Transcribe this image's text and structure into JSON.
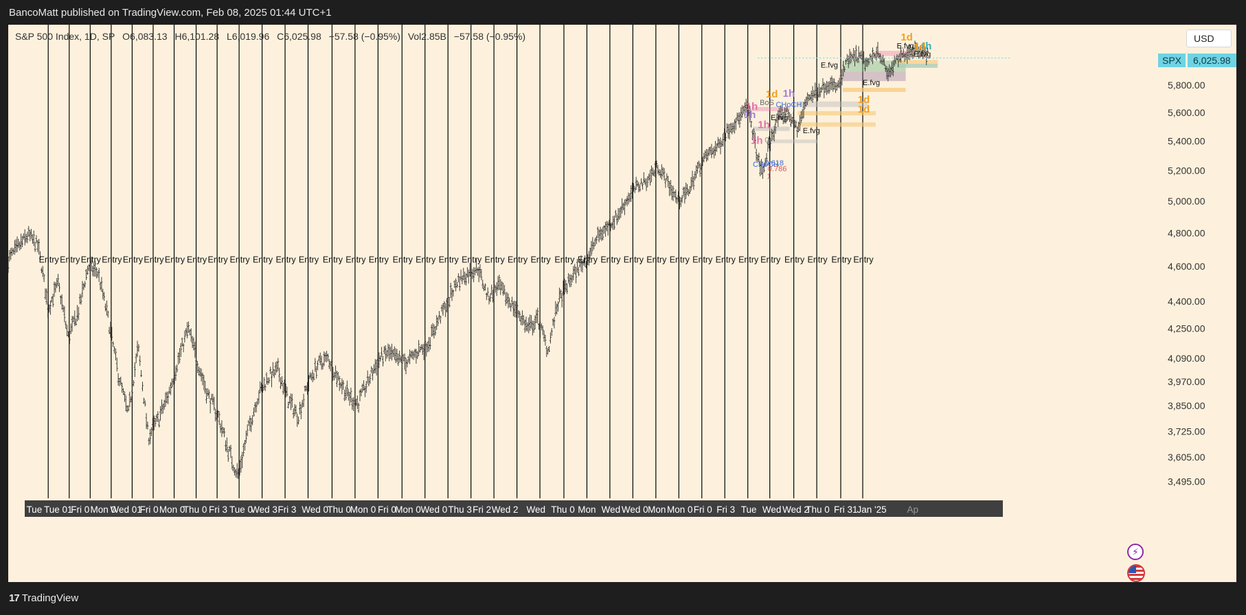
{
  "header": {
    "published": "BancoMatt published on TradingView.com, Feb 08, 2025 01:44 UTC+1"
  },
  "ohlc": {
    "symbol": "S&P 500 Index, 1D, SP",
    "open": "O6,083.13",
    "high": "H6,101.28",
    "low": "L6,019.96",
    "close": "C6,025.98",
    "change": "−57.58 (−0.95%)",
    "volume": "Vol2.85B",
    "change2": "−57.58 (−0.95%)"
  },
  "currency_button": "USD",
  "price_tag": {
    "symbol": "SPX",
    "value": "6,025.98"
  },
  "footer": {
    "logo": "TradingView",
    "logo_mark": "17"
  },
  "icons": {
    "flash": "lightning-icon",
    "flag": "us-flag-icon"
  },
  "colors": {
    "background": "#fdf1dd",
    "candles": "#2b2b2b",
    "entry_lines": "#000000",
    "price_tag": "#6fd3e3",
    "orange_label": "#f0a020",
    "purple_label": "#a57fd6",
    "pink_label": "#e36fa6",
    "teal_label": "#2bb3c0"
  },
  "chart_data": {
    "type": "candlestick",
    "title": "S&P 500 Index, 1D, SP",
    "ylim": [
      3420,
      6200
    ],
    "y_ticks": [
      "6,025.98",
      "5,800.00",
      "5,600.00",
      "5,400.00",
      "5,200.00",
      "5,000.00",
      "4,800.00",
      "4,600.00",
      "4,400.00",
      "4,250.00",
      "4,090.00",
      "3,970.00",
      "3,850.00",
      "3,725.00",
      "3,605.00",
      "3,495.00"
    ],
    "y_tick_values": [
      6025.98,
      5800,
      5600,
      5400,
      5200,
      5000,
      4800,
      4600,
      4400,
      4250,
      4090,
      3970,
      3850,
      3725,
      3605,
      3495
    ],
    "x_ticks": [
      "Tue",
      "Tue 01",
      "Fri 0",
      "Mon 0",
      "Wed 01",
      "Fri 0",
      "Mon 0",
      "Thu 0",
      "Fri 3",
      "Tue 0",
      "Wed 3",
      "Fri 3",
      "Wed 0",
      "Thu 0",
      "Mon 0",
      "Fri 0",
      "Mon 0",
      "Wed 0",
      "Thu 3",
      "Fri 2",
      "Wed 2",
      "Wed",
      "Thu 0",
      "Mon",
      "Wed",
      "Wed 0",
      "Mon",
      "Mon 0",
      "Fri 0",
      "Fri 3",
      "Tue",
      "Wed",
      "Wed 2",
      "Thu 0",
      "Fri 31",
      "Jan '25",
      "Ap"
    ],
    "x_tick_positions": [
      0.026,
      0.05,
      0.072,
      0.095,
      0.118,
      0.141,
      0.164,
      0.187,
      0.21,
      0.233,
      0.256,
      0.279,
      0.307,
      0.331,
      0.355,
      0.379,
      0.4,
      0.426,
      0.452,
      0.474,
      0.497,
      0.528,
      0.555,
      0.579,
      0.603,
      0.627,
      0.649,
      0.672,
      0.695,
      0.718,
      0.741,
      0.764,
      0.788,
      0.81,
      0.838,
      0.864,
      0.905
    ],
    "entry_label": "Entry",
    "entry_positions": [
      0.04,
      0.061,
      0.082,
      0.103,
      0.124,
      0.145,
      0.166,
      0.188,
      0.209,
      0.231,
      0.254,
      0.277,
      0.3,
      0.324,
      0.347,
      0.37,
      0.394,
      0.417,
      0.44,
      0.463,
      0.486,
      0.509,
      0.532,
      0.556,
      0.579,
      0.602,
      0.625,
      0.648,
      0.671,
      0.694,
      0.717,
      0.74,
      0.762,
      0.786,
      0.809,
      0.833,
      0.855
    ],
    "series_shape": [
      [
        0,
        4640
      ],
      [
        0.02,
        4790
      ],
      [
        0.03,
        4720
      ],
      [
        0.04,
        4360
      ],
      [
        0.05,
        4500
      ],
      [
        0.06,
        4200
      ],
      [
        0.07,
        4340
      ],
      [
        0.08,
        4600
      ],
      [
        0.09,
        4560
      ],
      [
        0.1,
        4300
      ],
      [
        0.11,
        4010
      ],
      [
        0.12,
        3800
      ],
      [
        0.13,
        4150
      ],
      [
        0.14,
        3700
      ],
      [
        0.15,
        3780
      ],
      [
        0.16,
        3900
      ],
      [
        0.17,
        4080
      ],
      [
        0.18,
        4250
      ],
      [
        0.19,
        4060
      ],
      [
        0.2,
        3900
      ],
      [
        0.21,
        3800
      ],
      [
        0.22,
        3640
      ],
      [
        0.23,
        3520
      ],
      [
        0.24,
        3730
      ],
      [
        0.25,
        3900
      ],
      [
        0.26,
        3990
      ],
      [
        0.27,
        4030
      ],
      [
        0.28,
        3880
      ],
      [
        0.29,
        3800
      ],
      [
        0.3,
        3960
      ],
      [
        0.31,
        4060
      ],
      [
        0.32,
        4090
      ],
      [
        0.33,
        3990
      ],
      [
        0.34,
        3900
      ],
      [
        0.35,
        3860
      ],
      [
        0.36,
        3970
      ],
      [
        0.37,
        4080
      ],
      [
        0.38,
        4120
      ],
      [
        0.39,
        4080
      ],
      [
        0.4,
        4070
      ],
      [
        0.41,
        4130
      ],
      [
        0.42,
        4170
      ],
      [
        0.43,
        4290
      ],
      [
        0.44,
        4400
      ],
      [
        0.45,
        4520
      ],
      [
        0.46,
        4560
      ],
      [
        0.47,
        4590
      ],
      [
        0.48,
        4420
      ],
      [
        0.49,
        4490
      ],
      [
        0.5,
        4410
      ],
      [
        0.51,
        4340
      ],
      [
        0.52,
        4250
      ],
      [
        0.53,
        4300
      ],
      [
        0.54,
        4130
      ],
      [
        0.55,
        4390
      ],
      [
        0.56,
        4500
      ],
      [
        0.57,
        4590
      ],
      [
        0.58,
        4650
      ],
      [
        0.59,
        4780
      ],
      [
        0.6,
        4840
      ],
      [
        0.61,
        4910
      ],
      [
        0.62,
        5020
      ],
      [
        0.63,
        5100
      ],
      [
        0.64,
        5140
      ],
      [
        0.65,
        5230
      ],
      [
        0.66,
        5120
      ],
      [
        0.67,
        5000
      ],
      [
        0.68,
        5060
      ],
      [
        0.69,
        5210
      ],
      [
        0.7,
        5310
      ],
      [
        0.71,
        5360
      ],
      [
        0.72,
        5480
      ],
      [
        0.73,
        5550
      ],
      [
        0.74,
        5640
      ],
      [
        0.75,
        5280
      ],
      [
        0.755,
        5180
      ],
      [
        0.76,
        5340
      ],
      [
        0.77,
        5560
      ],
      [
        0.78,
        5600
      ],
      [
        0.79,
        5480
      ],
      [
        0.8,
        5710
      ],
      [
        0.81,
        5760
      ],
      [
        0.82,
        5810
      ],
      [
        0.83,
        5780
      ],
      [
        0.84,
        5990
      ],
      [
        0.85,
        6020
      ],
      [
        0.86,
        5960
      ],
      [
        0.87,
        6070
      ],
      [
        0.88,
        5880
      ],
      [
        0.89,
        5990
      ],
      [
        0.9,
        6050
      ],
      [
        0.91,
        6080
      ],
      [
        0.92,
        6025.98
      ]
    ],
    "annotations": [
      {
        "text": "1d",
        "x": 0.758,
        "price": 5710,
        "color": "#f0a020"
      },
      {
        "text": "1h",
        "x": 0.775,
        "price": 5715,
        "color": "#a57fd6"
      },
      {
        "text": "BoS",
        "x": 0.752,
        "price": 5655,
        "color": "#6a6a6a"
      },
      {
        "text": "CHoCH",
        "x": 0.768,
        "price": 5640,
        "color": "#3a6ad6"
      },
      {
        "text": "1h",
        "x": 0.738,
        "price": 5620,
        "color": "#e36fa6"
      },
      {
        "text": "1h",
        "x": 0.736,
        "price": 5560,
        "color": "#a57fd6"
      },
      {
        "text": "E.fvg",
        "x": 0.763,
        "price": 5545,
        "color": "#111111"
      },
      {
        "text": "1h",
        "x": 0.75,
        "price": 5490,
        "color": "#e36fa6"
      },
      {
        "text": "E.fvg",
        "x": 0.795,
        "price": 5455,
        "color": "#111111"
      },
      {
        "text": "1h",
        "x": 0.743,
        "price": 5380,
        "color": "#e36fa6"
      },
      {
        "text": "0",
        "x": 0.757,
        "price": 5390,
        "color": "#888888"
      },
      {
        "text": "0.618",
        "x": 0.757,
        "price": 5235,
        "color": "#3a6ad6"
      },
      {
        "text": "CHoCH",
        "x": 0.745,
        "price": 5225,
        "color": "#3a6ad6"
      },
      {
        "text": "0.786",
        "x": 0.76,
        "price": 5195,
        "color": "#d65a5a"
      },
      {
        "text": "1",
        "x": 0.759,
        "price": 5145,
        "color": "#b07070"
      },
      {
        "text": "1d",
        "x": 0.85,
        "price": 5668,
        "color": "#f0a020"
      },
      {
        "text": "1d",
        "x": 0.85,
        "price": 5600,
        "color": "#f0a020"
      },
      {
        "text": "E.fvg",
        "x": 0.813,
        "price": 5930,
        "color": "#111111"
      },
      {
        "text": "E.fvg",
        "x": 0.855,
        "price": 5800,
        "color": "#111111"
      },
      {
        "text": "E.fvg",
        "x": 0.889,
        "price": 6080,
        "color": "#111111"
      },
      {
        "text": "E.fvg",
        "x": 0.906,
        "price": 6015,
        "color": "#111111"
      },
      {
        "text": "1d",
        "x": 0.893,
        "price": 6140,
        "color": "#f0a020"
      },
      {
        "text": "4h",
        "x": 0.912,
        "price": 6070,
        "color": "#2bb3c0"
      },
      {
        "text": "1d",
        "x": 0.906,
        "price": 6065,
        "color": "#f0a020"
      }
    ],
    "zones": [
      {
        "x1": 0.744,
        "x2": 0.782,
        "p1": 5640,
        "p2": 5610,
        "color": "#e36fa6",
        "opacity": 0.35
      },
      {
        "x1": 0.745,
        "x2": 0.782,
        "p1": 5500,
        "p2": 5470,
        "color": "#bdbdbd",
        "opacity": 0.55
      },
      {
        "x1": 0.76,
        "x2": 0.81,
        "p1": 5410,
        "p2": 5385,
        "color": "#bdbdbd",
        "opacity": 0.45
      },
      {
        "x1": 0.79,
        "x2": 0.86,
        "p1": 5680,
        "p2": 5640,
        "color": "#bdbdbd",
        "opacity": 0.45
      },
      {
        "x1": 0.79,
        "x2": 0.868,
        "p1": 5610,
        "p2": 5580,
        "color": "#f7c878",
        "opacity": 0.6
      },
      {
        "x1": 0.79,
        "x2": 0.868,
        "p1": 5530,
        "p2": 5500,
        "color": "#f7c878",
        "opacity": 0.6
      },
      {
        "x1": 0.835,
        "x2": 0.898,
        "p1": 5985,
        "p2": 5900,
        "color": "#7dbb8c",
        "opacity": 0.45
      },
      {
        "x1": 0.835,
        "x2": 0.898,
        "p1": 5900,
        "p2": 5830,
        "color": "#8a6a9a",
        "opacity": 0.35
      },
      {
        "x1": 0.835,
        "x2": 0.898,
        "p1": 5780,
        "p2": 5750,
        "color": "#f7c878",
        "opacity": 0.7
      },
      {
        "x1": 0.889,
        "x2": 0.93,
        "p1": 5990,
        "p2": 5930,
        "color": "#f7c878",
        "opacity": 0.6
      },
      {
        "x1": 0.889,
        "x2": 0.93,
        "p1": 5960,
        "p2": 5930,
        "color": "#7fd0e0",
        "opacity": 0.5
      },
      {
        "x1": 0.869,
        "x2": 0.9,
        "p1": 6060,
        "p2": 6020,
        "color": "#e36fa6",
        "opacity": 0.35
      }
    ]
  }
}
